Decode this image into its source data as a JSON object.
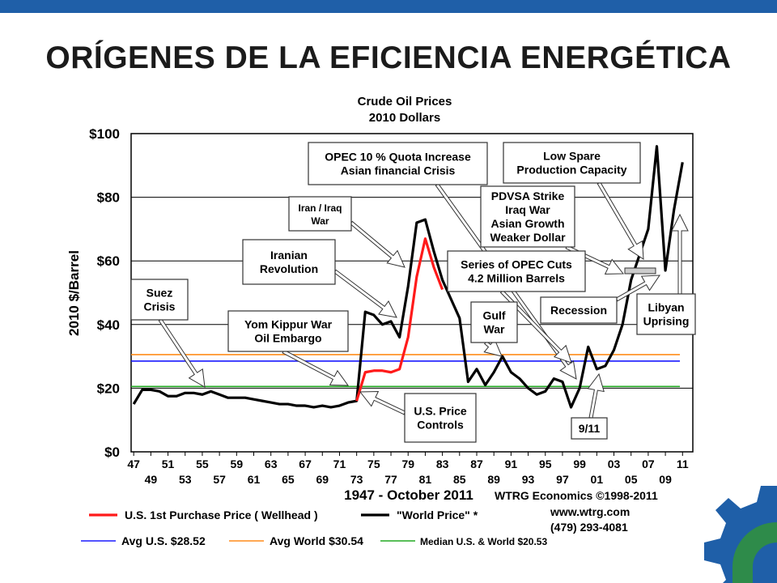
{
  "slide": {
    "title": "ORÍGENES DE LA EFICIENCIA ENERGÉTICA",
    "accent_color": "#1f5fa8",
    "logo_colors": [
      "#1f5fa8",
      "#2e8b4a"
    ]
  },
  "chart_data": {
    "type": "line",
    "title": "Crude Oil Prices",
    "subtitle": "2010 Dollars",
    "ylabel": "2010 $/Barrel",
    "xlabel": "1947 - October 2011",
    "ylim": [
      0,
      100
    ],
    "xlim": [
      1947,
      2012
    ],
    "grid": true,
    "y_tick_labels": [
      "$0",
      "$20",
      "$40",
      "$60",
      "$80",
      "$100"
    ],
    "x_tick_labels_top": [
      "47",
      "51",
      "55",
      "59",
      "63",
      "67",
      "71",
      "75",
      "79",
      "83",
      "87",
      "91",
      "95",
      "99",
      "03",
      "07",
      "11"
    ],
    "x_tick_labels_bottom": [
      "49",
      "53",
      "57",
      "61",
      "65",
      "69",
      "73",
      "77",
      "81",
      "85",
      "89",
      "93",
      "97",
      "01",
      "05",
      "09"
    ],
    "series": [
      {
        "name": "U.S. 1st Purchase Price ( Wellhead )",
        "color": "#ff1a1a",
        "x": [
          1973,
          1974,
          1975,
          1976,
          1977,
          1978,
          1979,
          1980,
          1981,
          1982,
          1983
        ],
        "y": [
          16,
          25,
          25.5,
          25.5,
          25,
          26,
          36,
          55,
          67,
          58,
          51
        ]
      },
      {
        "name": "\"World Price\" *",
        "color": "#000000",
        "x": [
          1947,
          1948,
          1949,
          1950,
          1951,
          1952,
          1953,
          1954,
          1955,
          1956,
          1957,
          1958,
          1959,
          1960,
          1961,
          1962,
          1963,
          1964,
          1965,
          1966,
          1967,
          1968,
          1969,
          1970,
          1971,
          1972,
          1973,
          1974,
          1975,
          1976,
          1977,
          1978,
          1979,
          1980,
          1981,
          1982,
          1983,
          1984,
          1985,
          1986,
          1987,
          1988,
          1989,
          1990,
          1991,
          1992,
          1993,
          1994,
          1995,
          1996,
          1997,
          1998,
          1999,
          2000,
          2001,
          2002,
          2003,
          2004,
          2005,
          2006,
          2007,
          2008,
          2009,
          2010,
          2011
        ],
        "y": [
          15,
          19.5,
          19.5,
          19,
          17.5,
          17.5,
          18.5,
          18.5,
          18,
          19,
          18,
          17,
          17,
          17,
          16.5,
          16,
          15.5,
          15,
          15,
          14.5,
          14.5,
          14,
          14.5,
          14,
          14.5,
          15.5,
          16,
          44,
          43,
          40,
          41,
          36,
          52,
          72,
          73,
          63,
          54,
          48,
          42,
          22,
          26,
          21,
          25,
          30,
          25,
          23,
          20,
          18,
          19,
          23,
          22,
          14,
          20,
          33,
          26,
          27,
          32,
          40,
          54,
          62,
          70,
          96,
          57,
          76,
          91
        ]
      }
    ],
    "reference_lines": [
      {
        "name": "Avg U.S. $28.52",
        "value": 28.52,
        "color": "#1a1aff"
      },
      {
        "name": "Avg World $30.54",
        "value": 30.54,
        "color": "#ff8c1a"
      },
      {
        "name": "Median U.S. & World $20.53",
        "value": 20.53,
        "color": "#22aa22"
      }
    ],
    "annotations": [
      {
        "id": "suez",
        "lines": [
          "Suez",
          "Crisis"
        ],
        "target_year": 1956
      },
      {
        "id": "yom",
        "lines": [
          "Yom Kippur War",
          "Oil Embargo"
        ],
        "target_year": 1973
      },
      {
        "id": "iranrev",
        "lines": [
          "Iranian",
          "Revolution"
        ],
        "target_year": 1979
      },
      {
        "id": "iraniraq",
        "lines": [
          "Iran / Iraq",
          "War"
        ],
        "target_year": 1980
      },
      {
        "id": "opec10",
        "lines": [
          "OPEC 10 % Quota Increase",
          "Asian financial Crisis"
        ],
        "target_year": 1998
      },
      {
        "id": "lowspare",
        "lines": [
          "Low Spare",
          "Production Capacity"
        ],
        "target_year": 2007
      },
      {
        "id": "pdvsa",
        "lines": [
          "PDVSA Strike",
          "Iraq War",
          "Asian Growth",
          "Weaker Dollar"
        ],
        "target_year": 2003
      },
      {
        "id": "opeccuts",
        "lines": [
          "Series of OPEC Cuts",
          "4.2 Million Barrels"
        ],
        "target_year": 1999
      },
      {
        "id": "gulf",
        "lines": [
          "Gulf",
          "War"
        ],
        "target_year": 1990
      },
      {
        "id": "recession",
        "lines": [
          "Recession"
        ],
        "target_year": 2008
      },
      {
        "id": "libyan",
        "lines": [
          "Libyan",
          "Uprising"
        ],
        "target_year": 2011
      },
      {
        "id": "usprice",
        "lines": [
          "U.S. Price",
          "Controls"
        ],
        "target_year": 1981
      },
      {
        "id": "911",
        "lines": [
          "9/11"
        ],
        "target_year": 2001
      }
    ],
    "credits": {
      "line1": "WTRG Economics  ©1998-2011",
      "line2": "www.wtrg.com",
      "line3": "(479) 293-4081"
    }
  }
}
